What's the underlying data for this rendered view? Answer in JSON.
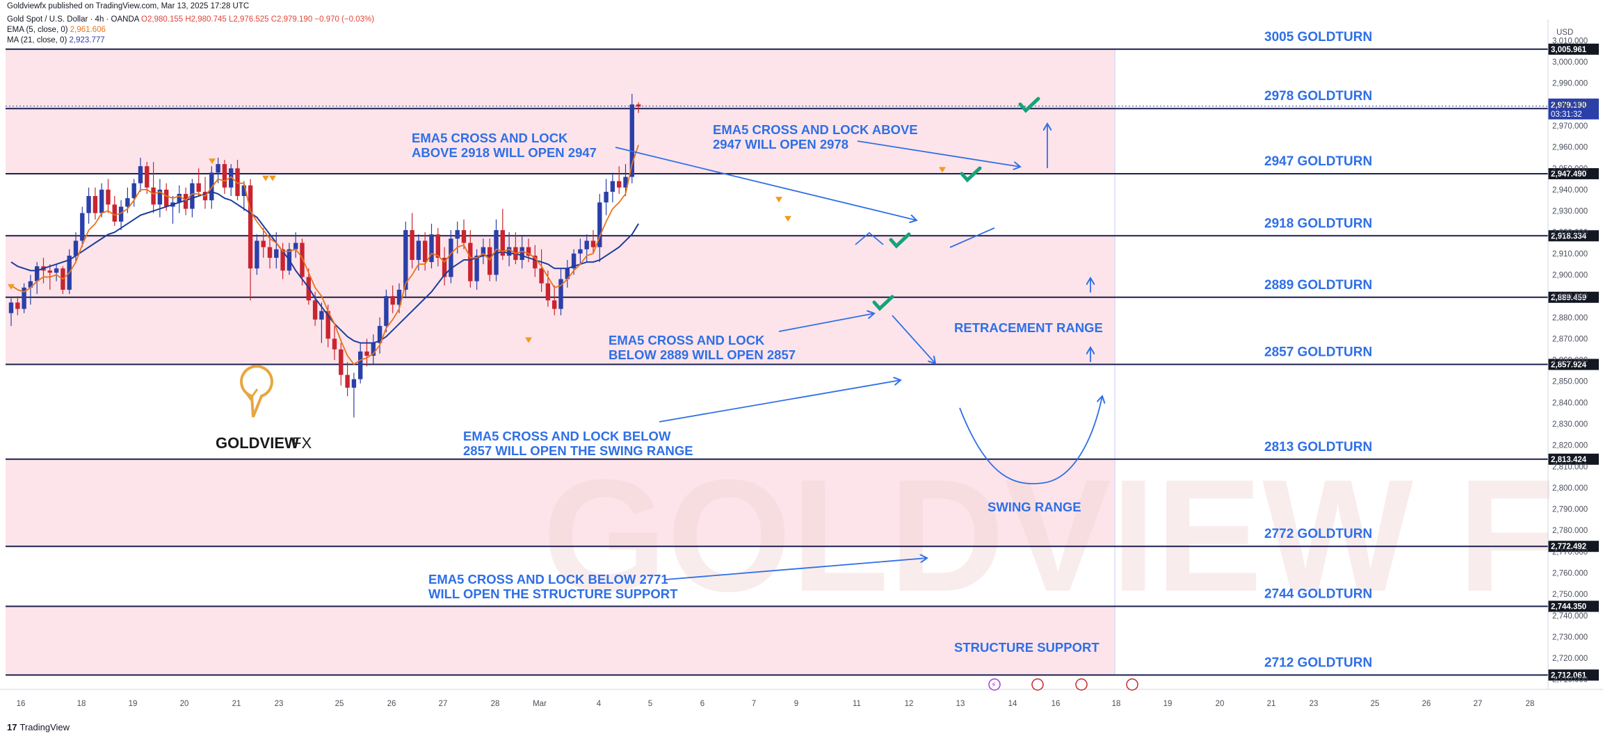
{
  "header": {
    "published": "Goldviewfx published on TradingView.com, Mar 13, 2025 17:28 UTC",
    "symbol": "Gold Spot / U.S. Dollar · 4h · OANDA",
    "ohlc": "O2,980.155 H2,980.745 L2,976.525 C2,979.190 −0.970 (−0.03%)",
    "ema_label": "EMA (5, close, 0)",
    "ema_value": "2,961.606",
    "ma_label": "MA (21, close, 0)",
    "ma_value": "2,923.777"
  },
  "footer": {
    "brand": "TradingView",
    "logo_glyph": "17"
  },
  "logo": {
    "name": "GOLDVIEW",
    "suffix": "FX"
  },
  "watermark": "GOLDVIEW F",
  "currency": "USD",
  "colors": {
    "level_line": "#1b1f4d",
    "zone_fill": "#fde4ea",
    "bull": "#2b3fa8",
    "bear": "#c9242f",
    "ema": "#e8741a",
    "ma": "#1d3c9c",
    "annotation": "#2f6fe6",
    "check": "#16a37a",
    "marker": "#f39a1d"
  },
  "chart_data": {
    "type": "candlestick",
    "title": "Gold Spot / U.S. Dollar · 4h · OANDA",
    "ylim": [
      2706,
      3016
    ],
    "y_ticks": [
      3010,
      3000,
      2990,
      2980,
      2970,
      2960,
      2950,
      2940,
      2930,
      2920,
      2910,
      2900,
      2890,
      2880,
      2870,
      2860,
      2850,
      2840,
      2830,
      2820,
      2810,
      2800,
      2790,
      2780,
      2770,
      2760,
      2750,
      2740,
      2730,
      2720,
      2710
    ],
    "y_tick_labels": [
      "3,010.000",
      "3,000.000",
      "2,990.000",
      "2,980.000",
      "2,970.000",
      "2,960.000",
      "2,950.000",
      "2,940.000",
      "2,930.000",
      "2,920.000",
      "2,910.000",
      "2,900.000",
      "2,890.000",
      "2,880.000",
      "2,870.000",
      "2,860.000",
      "2,850.000",
      "2,840.000",
      "2,830.000",
      "2,820.000",
      "2,810.000",
      "2,800.000",
      "2,790.000",
      "2,780.000",
      "2,770.000",
      "2,760.000",
      "2,750.000",
      "2,740.000",
      "2,730.000",
      "2,720.000",
      "2,710.000"
    ],
    "x_ticks": [
      "16",
      "18",
      "19",
      "20",
      "21",
      "23",
      "25",
      "26",
      "27",
      "28",
      "Mar",
      "4",
      "5",
      "6",
      "7",
      "9",
      "11",
      "12",
      "13",
      "14",
      "16",
      "18",
      "19",
      "20",
      "21",
      "23",
      "25",
      "26",
      "27",
      "28"
    ],
    "levels": [
      {
        "value": 3005.961,
        "label": "3005 GOLDTURN",
        "tag": "3,005.961"
      },
      {
        "value": 2978.077,
        "label": "2978 GOLDTURN",
        "tag": "2,978.077"
      },
      {
        "value": 2947.49,
        "label": "2947 GOLDTURN",
        "tag": "2,947.490"
      },
      {
        "value": 2918.334,
        "label": "2918 GOLDTURN",
        "tag": "2,918.334"
      },
      {
        "value": 2889.459,
        "label": "2889 GOLDTURN",
        "tag": "2,889.459"
      },
      {
        "value": 2857.924,
        "label": "2857 GOLDTURN",
        "tag": "2,857.924"
      },
      {
        "value": 2813.424,
        "label": "2813 GOLDTURN",
        "tag": "2,813.424"
      },
      {
        "value": 2772.492,
        "label": "2772 GOLDTURN",
        "tag": "2,772.492"
      },
      {
        "value": 2744.35,
        "label": "2744 GOLDTURN",
        "tag": "2,744.350"
      },
      {
        "value": 2712.061,
        "label": "2712 GOLDTURN",
        "tag": "2,712.061"
      }
    ],
    "zones": [
      {
        "from": 2947.49,
        "to": 3005.961
      },
      {
        "from": 2857.924,
        "to": 2918.334
      },
      {
        "from": 2772.492,
        "to": 2813.424
      },
      {
        "from": 2712.061,
        "to": 2744.35
      }
    ],
    "current_price": {
      "value": 2979.19,
      "tag": "2,979.190",
      "countdown": "03:31:32"
    },
    "annotations": [
      {
        "lines": [
          "EMA5 CROSS AND LOCK",
          "ABOVE 2918 WILL OPEN 2947"
        ]
      },
      {
        "lines": [
          "EMA5 CROSS AND LOCK ABOVE",
          "2947 WILL OPEN 2978"
        ]
      },
      {
        "lines": [
          "EMA5 CROSS AND LOCK",
          "BELOW 2889 WILL OPEN 2857"
        ]
      },
      {
        "lines": [
          "EMA5 CROSS AND LOCK BELOW",
          "2857 WILL OPEN THE SWING RANGE"
        ]
      },
      {
        "lines": [
          "EMA5 CROSS AND LOCK BELOW 2771",
          "WILL OPEN THE STRUCTURE SUPPORT"
        ]
      }
    ],
    "zone_labels": [
      "RETRACEMENT RANGE",
      "SWING RANGE",
      "STRUCTURE SUPPORT"
    ],
    "candles": [
      [
        2882,
        2889,
        2876,
        2887
      ],
      [
        2887,
        2890,
        2881,
        2884
      ],
      [
        2884,
        2896,
        2882,
        2894
      ],
      [
        2894,
        2900,
        2886,
        2897
      ],
      [
        2897,
        2906,
        2891,
        2904
      ],
      [
        2904,
        2908,
        2896,
        2902
      ],
      [
        2902,
        2905,
        2893,
        2901
      ],
      [
        2901,
        2905,
        2897,
        2903
      ],
      [
        2903,
        2904,
        2891,
        2893
      ],
      [
        2893,
        2912,
        2891,
        2909
      ],
      [
        2909,
        2920,
        2906,
        2916
      ],
      [
        2916,
        2932,
        2913,
        2929
      ],
      [
        2929,
        2941,
        2924,
        2937
      ],
      [
        2937,
        2941,
        2926,
        2929
      ],
      [
        2929,
        2943,
        2927,
        2940
      ],
      [
        2940,
        2945,
        2929,
        2933
      ],
      [
        2933,
        2937,
        2923,
        2925
      ],
      [
        2925,
        2935,
        2921,
        2932
      ],
      [
        2932,
        2941,
        2929,
        2936
      ],
      [
        2936,
        2945,
        2932,
        2943
      ],
      [
        2943,
        2955,
        2939,
        2951
      ],
      [
        2951,
        2953,
        2938,
        2941
      ],
      [
        2941,
        2953,
        2929,
        2933
      ],
      [
        2933,
        2945,
        2927,
        2940
      ],
      [
        2940,
        2943,
        2930,
        2932
      ],
      [
        2932,
        2937,
        2924,
        2934
      ],
      [
        2934,
        2942,
        2929,
        2938
      ],
      [
        2938,
        2941,
        2928,
        2931
      ],
      [
        2931,
        2945,
        2927,
        2943
      ],
      [
        2943,
        2950,
        2937,
        2939
      ],
      [
        2939,
        2946,
        2931,
        2935
      ],
      [
        2935,
        2951,
        2931,
        2948
      ],
      [
        2948,
        2955,
        2943,
        2952
      ],
      [
        2952,
        2954,
        2938,
        2941
      ],
      [
        2941,
        2952,
        2937,
        2950
      ],
      [
        2950,
        2954,
        2935,
        2937
      ],
      [
        2937,
        2944,
        2930,
        2942
      ],
      [
        2942,
        2945,
        2888,
        2903
      ],
      [
        2903,
        2919,
        2900,
        2916
      ],
      [
        2916,
        2922,
        2908,
        2913
      ],
      [
        2913,
        2918,
        2903,
        2908
      ],
      [
        2908,
        2920,
        2903,
        2912
      ],
      [
        2912,
        2915,
        2898,
        2902
      ],
      [
        2902,
        2915,
        2900,
        2912
      ],
      [
        2912,
        2920,
        2908,
        2915
      ],
      [
        2915,
        2917,
        2895,
        2899
      ],
      [
        2899,
        2903,
        2886,
        2888
      ],
      [
        2888,
        2892,
        2876,
        2879
      ],
      [
        2879,
        2887,
        2868,
        2883
      ],
      [
        2883,
        2886,
        2866,
        2870
      ],
      [
        2870,
        2876,
        2860,
        2865
      ],
      [
        2865,
        2868,
        2848,
        2853
      ],
      [
        2853,
        2859,
        2843,
        2847
      ],
      [
        2847,
        2854,
        2833,
        2851
      ],
      [
        2851,
        2868,
        2849,
        2864
      ],
      [
        2864,
        2870,
        2857,
        2862
      ],
      [
        2862,
        2872,
        2858,
        2868
      ],
      [
        2868,
        2880,
        2863,
        2876
      ],
      [
        2876,
        2893,
        2873,
        2890
      ],
      [
        2890,
        2895,
        2882,
        2886
      ],
      [
        2886,
        2896,
        2882,
        2893
      ],
      [
        2893,
        2925,
        2889,
        2921
      ],
      [
        2921,
        2929,
        2903,
        2907
      ],
      [
        2907,
        2919,
        2902,
        2916
      ],
      [
        2916,
        2920,
        2902,
        2906
      ],
      [
        2906,
        2924,
        2903,
        2919
      ],
      [
        2919,
        2922,
        2904,
        2908
      ],
      [
        2908,
        2913,
        2895,
        2899
      ],
      [
        2899,
        2921,
        2896,
        2917
      ],
      [
        2917,
        2925,
        2910,
        2921
      ],
      [
        2921,
        2926,
        2912,
        2915
      ],
      [
        2915,
        2921,
        2894,
        2897
      ],
      [
        2897,
        2912,
        2893,
        2909
      ],
      [
        2909,
        2917,
        2905,
        2913
      ],
      [
        2913,
        2917,
        2897,
        2900
      ],
      [
        2900,
        2926,
        2897,
        2921
      ],
      [
        2921,
        2931,
        2907,
        2909
      ],
      [
        2909,
        2920,
        2904,
        2913
      ],
      [
        2913,
        2920,
        2905,
        2907
      ],
      [
        2907,
        2918,
        2903,
        2913
      ],
      [
        2913,
        2917,
        2906,
        2909
      ],
      [
        2909,
        2914,
        2899,
        2903
      ],
      [
        2903,
        2912,
        2892,
        2896
      ],
      [
        2896,
        2902,
        2885,
        2888
      ],
      [
        2888,
        2895,
        2881,
        2884
      ],
      [
        2884,
        2903,
        2881,
        2898
      ],
      [
        2898,
        2907,
        2894,
        2903
      ],
      [
        2903,
        2912,
        2900,
        2910
      ],
      [
        2910,
        2917,
        2905,
        2912
      ],
      [
        2912,
        2919,
        2906,
        2916
      ],
      [
        2916,
        2921,
        2910,
        2913
      ],
      [
        2913,
        2938,
        2906,
        2934
      ],
      [
        2934,
        2945,
        2928,
        2939
      ],
      [
        2939,
        2948,
        2934,
        2944
      ],
      [
        2944,
        2951,
        2938,
        2941
      ],
      [
        2941,
        2952,
        2937,
        2946
      ],
      [
        2946,
        2985,
        2943,
        2980
      ],
      [
        2980,
        2981,
        2976,
        2979
      ]
    ],
    "ema": [
      2895,
      2893,
      2892,
      2894,
      2897,
      2899,
      2899,
      2900,
      2898,
      2901,
      2906,
      2914,
      2921,
      2924,
      2929,
      2930,
      2928,
      2929,
      2931,
      2935,
      2940,
      2940,
      2938,
      2939,
      2937,
      2936,
      2937,
      2935,
      2938,
      2938,
      2937,
      2941,
      2945,
      2944,
      2946,
      2943,
      2943,
      2930,
      2925,
      2921,
      2917,
      2915,
      2911,
      2911,
      2912,
      2908,
      2901,
      2894,
      2890,
      2883,
      2877,
      2869,
      2862,
      2858,
      2860,
      2861,
      2863,
      2867,
      2875,
      2879,
      2884,
      2896,
      2900,
      2905,
      2905,
      2910,
      2909,
      2906,
      2910,
      2913,
      2914,
      2908,
      2908,
      2910,
      2907,
      2912,
      2911,
      2912,
      2910,
      2911,
      2910,
      2908,
      2904,
      2899,
      2894,
      2895,
      2898,
      2902,
      2905,
      2909,
      2910,
      2918,
      2925,
      2931,
      2934,
      2938,
      2952,
      2961
    ],
    "ma": [
      2906,
      2904,
      2903,
      2902,
      2902,
      2903,
      2904,
      2905,
      2906,
      2907,
      2909,
      2911,
      2913,
      2915,
      2917,
      2919,
      2920,
      2922,
      2924,
      2926,
      2928,
      2929,
      2930,
      2931,
      2932,
      2933,
      2934,
      2935,
      2936,
      2937,
      2938,
      2939,
      2938,
      2936,
      2935,
      2933,
      2931,
      2929,
      2927,
      2923,
      2919,
      2915,
      2911,
      2907,
      2902,
      2898,
      2894,
      2889,
      2885,
      2881,
      2877,
      2874,
      2871,
      2869,
      2868,
      2868,
      2868,
      2869,
      2871,
      2874,
      2877,
      2880,
      2883,
      2886,
      2889,
      2892,
      2896,
      2900,
      2903,
      2905,
      2907,
      2907,
      2908,
      2909,
      2909,
      2910,
      2911,
      2910,
      2910,
      2909,
      2908,
      2907,
      2906,
      2905,
      2903,
      2903,
      2903,
      2904,
      2905,
      2906,
      2906,
      2907,
      2909,
      2911,
      2913,
      2916,
      2919,
      2924
    ]
  }
}
